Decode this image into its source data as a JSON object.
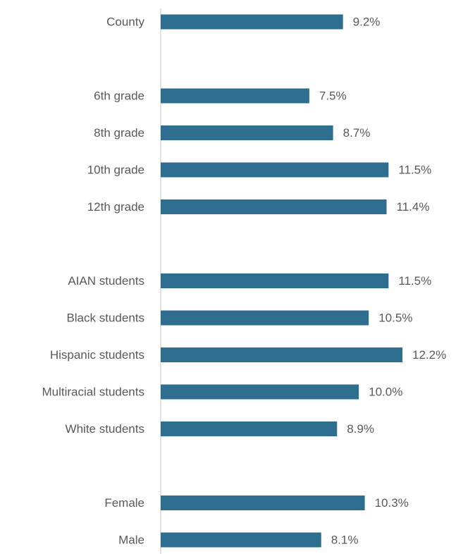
{
  "chart_data": {
    "type": "bar",
    "orientation": "horizontal",
    "title": "",
    "xlabel": "",
    "ylabel": "",
    "categories": [
      "County",
      "6th grade",
      "8th grade",
      "10th grade",
      "12th grade",
      "AIAN students",
      "Black students",
      "Hispanic students",
      "Multiracial students",
      "White students",
      "Female",
      "Male"
    ],
    "groups": [
      [
        "County"
      ],
      [
        "6th grade",
        "8th grade",
        "10th grade",
        "12th grade"
      ],
      [
        "AIAN students",
        "Black students",
        "Hispanic students",
        "Multiracial students",
        "White students"
      ],
      [
        "Female",
        "Male"
      ]
    ],
    "values": [
      9.2,
      7.5,
      8.7,
      11.5,
      11.4,
      11.5,
      10.5,
      12.2,
      10.0,
      8.9,
      10.3,
      8.1
    ],
    "value_labels": [
      "9.2%",
      "7.5%",
      "8.7%",
      "11.5%",
      "11.4%",
      "11.5%",
      "10.5%",
      "12.2%",
      "10.0%",
      "8.9%",
      "10.3%",
      "8.1%"
    ],
    "xlim": [
      0,
      12.2
    ],
    "grid": false,
    "legend": "none",
    "bar_color": "#2E6E8E",
    "axis_color": "#D9D9D9",
    "text_color": "#595959"
  }
}
